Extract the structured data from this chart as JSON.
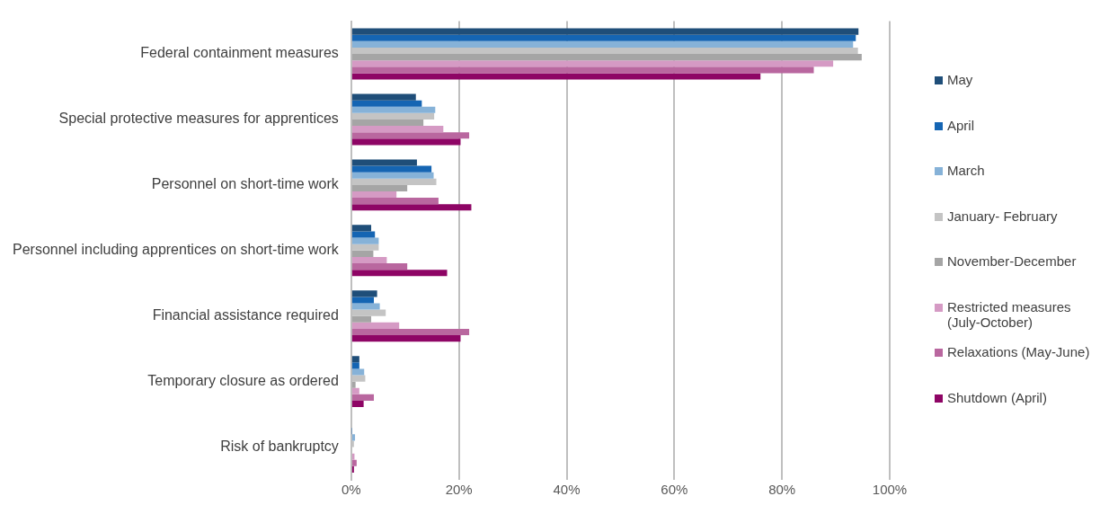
{
  "chart_data": {
    "type": "bar",
    "orientation": "horizontal",
    "categories": [
      "Federal containment measures",
      "Special protective measures for apprentices",
      "Personnel on short-time work",
      "Personnel including apprentices on short-time work",
      "Financial assistance required",
      "Temporary closure as ordered",
      "Risk of bankruptcy"
    ],
    "series": [
      {
        "name": "May",
        "color": "#1f4e79",
        "values": [
          94.2,
          12.0,
          12.2,
          3.7,
          4.8,
          1.5,
          null
        ]
      },
      {
        "name": "April",
        "color": "#1565b3",
        "values": [
          93.7,
          13.1,
          14.9,
          4.4,
          4.2,
          1.5,
          0.1
        ]
      },
      {
        "name": "March",
        "color": "#86b2d8",
        "values": [
          93.2,
          15.6,
          15.3,
          5.1,
          5.3,
          2.4,
          0.7
        ]
      },
      {
        "name": "January- February",
        "color": "#c4c4c4",
        "values": [
          94.1,
          15.4,
          15.8,
          5.1,
          6.4,
          2.6,
          0.5
        ]
      },
      {
        "name": "November-December",
        "color": "#a5a5a5",
        "values": [
          94.8,
          13.4,
          10.4,
          4.1,
          3.7,
          0.8,
          0
        ]
      },
      {
        "name": "Restricted measures (July-October)",
        "color": "#d59ac4",
        "values": [
          89.5,
          17.1,
          8.4,
          6.6,
          8.9,
          1.5,
          0.6
        ]
      },
      {
        "name": "Relaxations (May-June)",
        "color": "#b9679f",
        "values": [
          85.9,
          21.9,
          16.2,
          10.4,
          21.9,
          4.2,
          1.0
        ]
      },
      {
        "name": "Shutdown (April)",
        "color": "#8e0565",
        "values": [
          76.0,
          20.3,
          22.3,
          17.8,
          20.3,
          2.3,
          0.5
        ]
      }
    ],
    "xlim": [
      0,
      100
    ],
    "xticks": [
      {
        "value": 0,
        "label": "0%"
      },
      {
        "value": 20,
        "label": "20%"
      },
      {
        "value": 40,
        "label": "40%"
      },
      {
        "value": 60,
        "label": "60%"
      },
      {
        "value": 80,
        "label": "80%"
      },
      {
        "value": 100,
        "label": "100%"
      }
    ],
    "grid": "x",
    "legend": "right"
  }
}
